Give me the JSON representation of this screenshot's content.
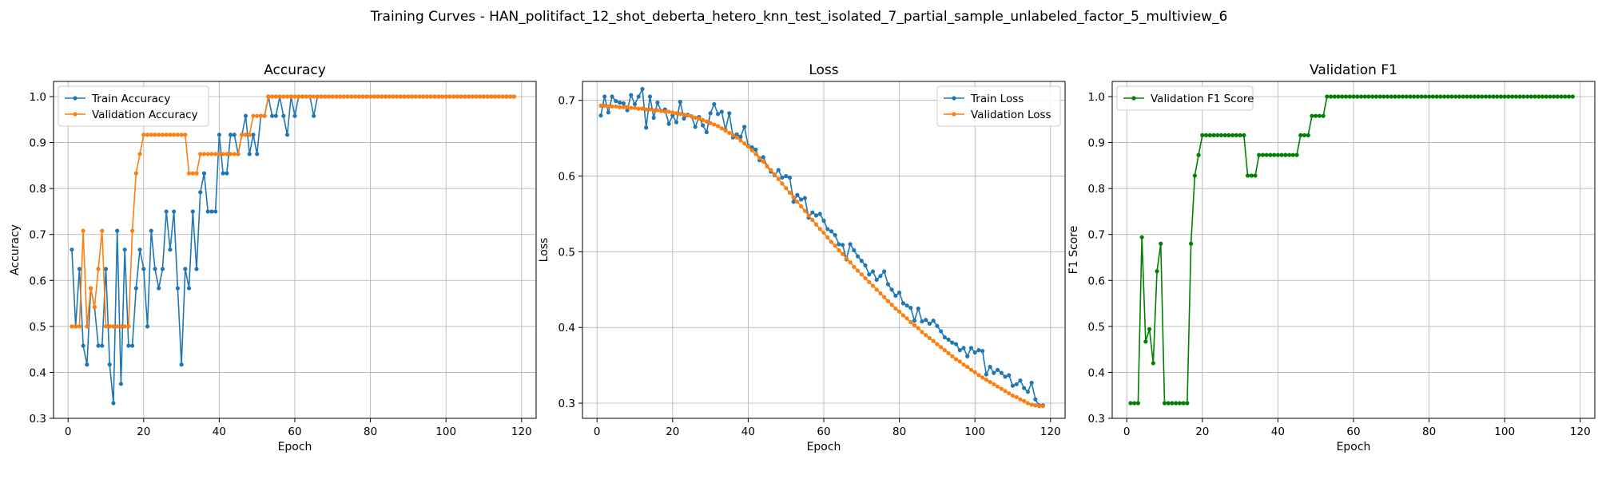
{
  "figure": {
    "suptitle": "Training Curves - HAN_politifact_12_shot_deberta_hetero_knn_test_isolated_7_partial_sample_unlabeled_factor_5_multiview_6"
  },
  "colors": {
    "blue": "#1f77b4",
    "orange": "#ff7f0e",
    "green": "#008000",
    "grid": "#b0b0b0"
  },
  "chart_data": [
    {
      "type": "line",
      "title": "Accuracy",
      "xlabel": "Epoch",
      "ylabel": "Accuracy",
      "xlim": [
        -3.85,
        123.85
      ],
      "ylim": [
        0.3,
        1.033
      ],
      "xticks": [
        0,
        20,
        40,
        60,
        80,
        100,
        120
      ],
      "yticks": [
        0.3,
        0.4,
        0.5,
        0.6,
        0.7,
        0.8,
        0.9,
        1.0
      ],
      "ytick_labels": [
        "0.3",
        "0.4",
        "0.5",
        "0.6",
        "0.7",
        "0.8",
        "0.9",
        "1.0"
      ],
      "grid": true,
      "legend_position": "upper-left",
      "series": [
        {
          "name": "Train Accuracy",
          "color": "#1f77b4",
          "start_epoch": 1,
          "values": [
            0.667,
            0.5,
            0.625,
            0.458,
            0.417,
            0.583,
            0.542,
            0.458,
            0.458,
            0.625,
            0.417,
            0.333,
            0.708,
            0.375,
            0.667,
            0.458,
            0.458,
            0.583,
            0.667,
            0.625,
            0.5,
            0.708,
            0.625,
            0.583,
            0.625,
            0.75,
            0.667,
            0.75,
            0.583,
            0.417,
            0.625,
            0.583,
            0.75,
            0.625,
            0.792,
            0.833,
            0.75,
            0.75,
            0.75,
            0.917,
            0.833,
            0.833,
            0.917,
            0.917,
            0.875,
            0.917,
            0.958,
            0.875,
            0.917,
            0.875,
            0.958,
            0.958,
            1.0,
            0.958,
            0.958,
            1.0,
            0.958,
            0.917,
            1.0,
            0.958,
            1.0,
            1.0,
            1.0,
            1.0,
            0.958,
            1.0,
            1.0,
            1.0,
            1.0,
            1.0,
            1.0,
            1.0,
            1.0,
            1.0,
            1.0,
            1.0,
            1.0,
            1.0,
            1.0,
            1.0,
            1.0,
            1.0,
            1.0,
            1.0,
            1.0,
            1.0,
            1.0,
            1.0,
            1.0,
            1.0,
            1.0,
            1.0,
            1.0,
            1.0,
            1.0,
            1.0,
            1.0,
            1.0,
            1.0,
            1.0,
            1.0,
            1.0,
            1.0,
            1.0,
            1.0,
            1.0,
            1.0,
            1.0,
            1.0,
            1.0,
            1.0,
            1.0,
            1.0,
            1.0,
            1.0,
            1.0,
            1.0,
            1.0
          ]
        },
        {
          "name": "Validation Accuracy",
          "color": "#ff7f0e",
          "start_epoch": 1,
          "values": [
            0.5,
            0.5,
            0.5,
            0.708,
            0.5,
            0.583,
            0.542,
            0.625,
            0.708,
            0.5,
            0.5,
            0.5,
            0.5,
            0.5,
            0.5,
            0.5,
            0.708,
            0.833,
            0.875,
            0.917,
            0.917,
            0.917,
            0.917,
            0.917,
            0.917,
            0.917,
            0.917,
            0.917,
            0.917,
            0.917,
            0.917,
            0.833,
            0.833,
            0.833,
            0.875,
            0.875,
            0.875,
            0.875,
            0.875,
            0.875,
            0.875,
            0.875,
            0.875,
            0.875,
            0.875,
            0.917,
            0.917,
            0.917,
            0.958,
            0.958,
            0.958,
            0.958,
            1.0,
            1.0,
            1.0,
            1.0,
            1.0,
            1.0,
            1.0,
            1.0,
            1.0,
            1.0,
            1.0,
            1.0,
            1.0,
            1.0,
            1.0,
            1.0,
            1.0,
            1.0,
            1.0,
            1.0,
            1.0,
            1.0,
            1.0,
            1.0,
            1.0,
            1.0,
            1.0,
            1.0,
            1.0,
            1.0,
            1.0,
            1.0,
            1.0,
            1.0,
            1.0,
            1.0,
            1.0,
            1.0,
            1.0,
            1.0,
            1.0,
            1.0,
            1.0,
            1.0,
            1.0,
            1.0,
            1.0,
            1.0,
            1.0,
            1.0,
            1.0,
            1.0,
            1.0,
            1.0,
            1.0,
            1.0,
            1.0,
            1.0,
            1.0,
            1.0,
            1.0,
            1.0,
            1.0,
            1.0,
            1.0,
            1.0
          ]
        }
      ]
    },
    {
      "type": "line",
      "title": "Loss",
      "xlabel": "Epoch",
      "ylabel": "Loss",
      "xlim": [
        -3.85,
        123.85
      ],
      "ylim": [
        0.28,
        0.725
      ],
      "xticks": [
        0,
        20,
        40,
        60,
        80,
        100,
        120
      ],
      "yticks": [
        0.3,
        0.4,
        0.5,
        0.6,
        0.7
      ],
      "ytick_labels": [
        "0.3",
        "0.4",
        "0.5",
        "0.6",
        "0.7"
      ],
      "grid": true,
      "legend_position": "upper-right",
      "series": [
        {
          "name": "Train Loss",
          "color": "#1f77b4",
          "start_epoch": 1,
          "values": [
            0.68,
            0.705,
            0.684,
            0.705,
            0.699,
            0.697,
            0.696,
            0.687,
            0.707,
            0.695,
            0.705,
            0.715,
            0.664,
            0.705,
            0.677,
            0.697,
            0.686,
            0.688,
            0.669,
            0.68,
            0.671,
            0.698,
            0.676,
            0.681,
            0.679,
            0.665,
            0.678,
            0.667,
            0.658,
            0.683,
            0.695,
            0.682,
            0.685,
            0.661,
            0.683,
            0.651,
            0.655,
            0.652,
            0.665,
            0.64,
            0.638,
            0.635,
            0.621,
            0.625,
            0.613,
            0.606,
            0.601,
            0.608,
            0.598,
            0.6,
            0.598,
            0.566,
            0.575,
            0.569,
            0.571,
            0.545,
            0.552,
            0.548,
            0.55,
            0.541,
            0.53,
            0.527,
            0.522,
            0.51,
            0.509,
            0.49,
            0.51,
            0.502,
            0.494,
            0.488,
            0.482,
            0.47,
            0.474,
            0.463,
            0.468,
            0.474,
            0.457,
            0.45,
            0.442,
            0.446,
            0.432,
            0.429,
            0.426,
            0.409,
            0.425,
            0.408,
            0.41,
            0.405,
            0.409,
            0.402,
            0.395,
            0.387,
            0.384,
            0.38,
            0.378,
            0.37,
            0.373,
            0.362,
            0.373,
            0.367,
            0.37,
            0.369,
            0.338,
            0.348,
            0.34,
            0.344,
            0.34,
            0.335,
            0.337,
            0.323,
            0.325,
            0.33,
            0.32,
            0.315,
            0.327,
            0.305,
            0.297,
            0.297
          ]
        },
        {
          "name": "Validation Loss",
          "color": "#ff7f0e",
          "start_epoch": 1,
          "values": [
            0.693,
            0.693,
            0.692,
            0.692,
            0.692,
            0.691,
            0.691,
            0.691,
            0.69,
            0.69,
            0.689,
            0.689,
            0.688,
            0.688,
            0.687,
            0.687,
            0.686,
            0.685,
            0.685,
            0.684,
            0.683,
            0.682,
            0.681,
            0.68,
            0.679,
            0.677,
            0.676,
            0.674,
            0.672,
            0.67,
            0.668,
            0.666,
            0.663,
            0.66,
            0.657,
            0.654,
            0.651,
            0.647,
            0.643,
            0.639,
            0.634,
            0.629,
            0.624,
            0.619,
            0.613,
            0.608,
            0.602,
            0.596,
            0.59,
            0.584,
            0.578,
            0.572,
            0.566,
            0.56,
            0.554,
            0.548,
            0.542,
            0.536,
            0.53,
            0.525,
            0.519,
            0.513,
            0.508,
            0.502,
            0.497,
            0.491,
            0.486,
            0.48,
            0.475,
            0.47,
            0.465,
            0.46,
            0.455,
            0.45,
            0.445,
            0.44,
            0.435,
            0.43,
            0.425,
            0.421,
            0.416,
            0.412,
            0.407,
            0.403,
            0.399,
            0.394,
            0.39,
            0.386,
            0.382,
            0.378,
            0.374,
            0.37,
            0.366,
            0.362,
            0.358,
            0.355,
            0.351,
            0.348,
            0.344,
            0.341,
            0.337,
            0.334,
            0.331,
            0.328,
            0.325,
            0.322,
            0.319,
            0.316,
            0.313,
            0.31,
            0.308,
            0.305,
            0.303,
            0.3,
            0.298,
            0.297,
            0.296,
            0.296
          ]
        }
      ]
    },
    {
      "type": "line",
      "title": "Validation F1",
      "xlabel": "Epoch",
      "ylabel": "F1 Score",
      "xlim": [
        -3.85,
        123.85
      ],
      "ylim": [
        0.3,
        1.033
      ],
      "xticks": [
        0,
        20,
        40,
        60,
        80,
        100,
        120
      ],
      "yticks": [
        0.3,
        0.4,
        0.5,
        0.6,
        0.7,
        0.8,
        0.9,
        1.0
      ],
      "ytick_labels": [
        "0.3",
        "0.4",
        "0.5",
        "0.6",
        "0.7",
        "0.8",
        "0.9",
        "1.0"
      ],
      "grid": true,
      "legend_position": "upper-left",
      "series": [
        {
          "name": "Validation F1 Score",
          "color": "#008000",
          "start_epoch": 1,
          "values": [
            0.333,
            0.333,
            0.333,
            0.694,
            0.467,
            0.494,
            0.42,
            0.62,
            0.68,
            0.333,
            0.333,
            0.333,
            0.333,
            0.333,
            0.333,
            0.333,
            0.68,
            0.828,
            0.873,
            0.916,
            0.916,
            0.916,
            0.916,
            0.916,
            0.916,
            0.916,
            0.916,
            0.916,
            0.916,
            0.916,
            0.916,
            0.828,
            0.828,
            0.828,
            0.873,
            0.873,
            0.873,
            0.873,
            0.873,
            0.873,
            0.873,
            0.873,
            0.873,
            0.873,
            0.873,
            0.916,
            0.916,
            0.916,
            0.958,
            0.958,
            0.958,
            0.958,
            1.0,
            1.0,
            1.0,
            1.0,
            1.0,
            1.0,
            1.0,
            1.0,
            1.0,
            1.0,
            1.0,
            1.0,
            1.0,
            1.0,
            1.0,
            1.0,
            1.0,
            1.0,
            1.0,
            1.0,
            1.0,
            1.0,
            1.0,
            1.0,
            1.0,
            1.0,
            1.0,
            1.0,
            1.0,
            1.0,
            1.0,
            1.0,
            1.0,
            1.0,
            1.0,
            1.0,
            1.0,
            1.0,
            1.0,
            1.0,
            1.0,
            1.0,
            1.0,
            1.0,
            1.0,
            1.0,
            1.0,
            1.0,
            1.0,
            1.0,
            1.0,
            1.0,
            1.0,
            1.0,
            1.0,
            1.0,
            1.0,
            1.0,
            1.0,
            1.0,
            1.0,
            1.0,
            1.0,
            1.0,
            1.0,
            1.0
          ]
        }
      ]
    }
  ]
}
